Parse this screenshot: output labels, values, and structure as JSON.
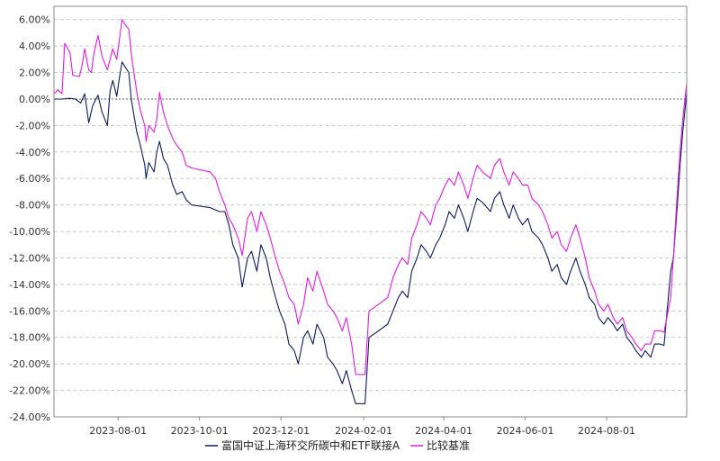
{
  "chart_data": {
    "type": "line",
    "title": "",
    "xlabel": "",
    "ylabel": "",
    "x_range": [
      "2023-06-14",
      "2024-09-30"
    ],
    "ylim": [
      -24,
      7
    ],
    "y_ticks": [
      6,
      4,
      2,
      0,
      -2,
      -4,
      -6,
      -8,
      -10,
      -12,
      -14,
      -16,
      -18,
      -20,
      -22,
      -24
    ],
    "y_tick_labels": [
      "6.00%",
      "4.00%",
      "2.00%",
      "0.00%",
      "-2.00%",
      "-4.00%",
      "-6.00%",
      "-8.00%",
      "-10.00%",
      "-12.00%",
      "-14.00%",
      "-16.00%",
      "-18.00%",
      "-20.00%",
      "-22.00%",
      "-24.00%"
    ],
    "x_ticks": [
      "2023-08-01",
      "2023-10-01",
      "2023-12-01",
      "2024-02-01",
      "2024-04-01",
      "2024-06-01",
      "2024-08-01"
    ],
    "grid": true,
    "legend_position": "bottom",
    "series": [
      {
        "name": "富国中证上海环交所碳中和ETF联接A",
        "color": "#0d1a5c",
        "points": [
          [
            "2023-06-14",
            0.0
          ],
          [
            "2023-06-20",
            0.0
          ],
          [
            "2023-06-26",
            0.05
          ],
          [
            "2023-06-30",
            0.0
          ],
          [
            "2023-07-04",
            -0.3
          ],
          [
            "2023-07-07",
            0.4
          ],
          [
            "2023-07-10",
            -1.8
          ],
          [
            "2023-07-13",
            -0.5
          ],
          [
            "2023-07-17",
            0.3
          ],
          [
            "2023-07-20",
            -1.0
          ],
          [
            "2023-07-24",
            -2.0
          ],
          [
            "2023-07-26",
            0.6
          ],
          [
            "2023-07-28",
            1.4
          ],
          [
            "2023-07-31",
            0.2
          ],
          [
            "2023-08-02",
            1.6
          ],
          [
            "2023-08-04",
            2.8
          ],
          [
            "2023-08-07",
            2.3
          ],
          [
            "2023-08-09",
            2.0
          ],
          [
            "2023-08-11",
            -0.1
          ],
          [
            "2023-08-15",
            -2.5
          ],
          [
            "2023-08-17",
            -3.2
          ],
          [
            "2023-08-21",
            -5.0
          ],
          [
            "2023-08-22",
            -6.0
          ],
          [
            "2023-08-24",
            -4.8
          ],
          [
            "2023-08-28",
            -5.5
          ],
          [
            "2023-08-30",
            -4.0
          ],
          [
            "2023-09-01",
            -3.2
          ],
          [
            "2023-09-04",
            -4.5
          ],
          [
            "2023-09-07",
            -5.0
          ],
          [
            "2023-09-11",
            -6.5
          ],
          [
            "2023-09-14",
            -7.2
          ],
          [
            "2023-09-18",
            -7.0
          ],
          [
            "2023-09-21",
            -7.6
          ],
          [
            "2023-09-25",
            -8.0
          ],
          [
            "2023-10-09",
            -8.2
          ],
          [
            "2023-10-16",
            -8.5
          ],
          [
            "2023-10-20",
            -8.5
          ],
          [
            "2023-10-23",
            -9.5
          ],
          [
            "2023-10-26",
            -11.0
          ],
          [
            "2023-10-30",
            -12.0
          ],
          [
            "2023-11-02",
            -14.2
          ],
          [
            "2023-11-06",
            -12.0
          ],
          [
            "2023-11-09",
            -11.5
          ],
          [
            "2023-11-13",
            -13.0
          ],
          [
            "2023-11-16",
            -11.0
          ],
          [
            "2023-11-20",
            -12.0
          ],
          [
            "2023-11-23",
            -13.5
          ],
          [
            "2023-11-27",
            -15.0
          ],
          [
            "2023-11-30",
            -16.0
          ],
          [
            "2023-12-04",
            -17.0
          ],
          [
            "2023-12-07",
            -18.5
          ],
          [
            "2023-12-11",
            -19.0
          ],
          [
            "2023-12-14",
            -20.0
          ],
          [
            "2023-12-18",
            -18.0
          ],
          [
            "2023-12-21",
            -17.5
          ],
          [
            "2023-12-25",
            -18.5
          ],
          [
            "2023-12-28",
            -17.0
          ],
          [
            "2024-01-02",
            -18.0
          ],
          [
            "2024-01-05",
            -19.5
          ],
          [
            "2024-01-09",
            -20.0
          ],
          [
            "2024-01-12",
            -20.5
          ],
          [
            "2024-01-16",
            -21.5
          ],
          [
            "2024-01-19",
            -20.5
          ],
          [
            "2024-01-23",
            -22.0
          ],
          [
            "2024-01-26",
            -23.0
          ],
          [
            "2024-02-02",
            -23.0
          ],
          [
            "2024-02-05",
            -18.0
          ],
          [
            "2024-02-08",
            -17.8
          ],
          [
            "2024-02-19",
            -17.0
          ],
          [
            "2024-02-23",
            -16.0
          ],
          [
            "2024-02-27",
            -15.0
          ],
          [
            "2024-03-01",
            -14.5
          ],
          [
            "2024-03-05",
            -15.0
          ],
          [
            "2024-03-08",
            -13.0
          ],
          [
            "2024-03-12",
            -12.0
          ],
          [
            "2024-03-15",
            -11.0
          ],
          [
            "2024-03-19",
            -11.5
          ],
          [
            "2024-03-22",
            -12.0
          ],
          [
            "2024-03-26",
            -11.0
          ],
          [
            "2024-03-29",
            -10.5
          ],
          [
            "2024-04-02",
            -9.5
          ],
          [
            "2024-04-05",
            -8.5
          ],
          [
            "2024-04-09",
            -9.0
          ],
          [
            "2024-04-12",
            -8.0
          ],
          [
            "2024-04-16",
            -9.0
          ],
          [
            "2024-04-19",
            -10.0
          ],
          [
            "2024-04-23",
            -8.5
          ],
          [
            "2024-04-26",
            -7.5
          ],
          [
            "2024-04-30",
            -7.8
          ],
          [
            "2024-05-06",
            -8.5
          ],
          [
            "2024-05-09",
            -7.5
          ],
          [
            "2024-05-13",
            -7.0
          ],
          [
            "2024-05-16",
            -8.0
          ],
          [
            "2024-05-20",
            -9.0
          ],
          [
            "2024-05-23",
            -8.0
          ],
          [
            "2024-05-27",
            -9.0
          ],
          [
            "2024-05-30",
            -9.5
          ],
          [
            "2024-06-03",
            -9.0
          ],
          [
            "2024-06-06",
            -10.0
          ],
          [
            "2024-06-11",
            -10.5
          ],
          [
            "2024-06-14",
            -11.0
          ],
          [
            "2024-06-18",
            -12.0
          ],
          [
            "2024-06-21",
            -13.0
          ],
          [
            "2024-06-25",
            -12.5
          ],
          [
            "2024-06-28",
            -13.5
          ],
          [
            "2024-07-02",
            -14.0
          ],
          [
            "2024-07-05",
            -13.0
          ],
          [
            "2024-07-09",
            -12.0
          ],
          [
            "2024-07-12",
            -13.0
          ],
          [
            "2024-07-16",
            -14.0
          ],
          [
            "2024-07-19",
            -15.0
          ],
          [
            "2024-07-23",
            -15.5
          ],
          [
            "2024-07-26",
            -16.5
          ],
          [
            "2024-07-30",
            -17.0
          ],
          [
            "2024-08-02",
            -16.5
          ],
          [
            "2024-08-06",
            -17.0
          ],
          [
            "2024-08-09",
            -17.5
          ],
          [
            "2024-08-13",
            -17.0
          ],
          [
            "2024-08-16",
            -18.0
          ],
          [
            "2024-08-20",
            -18.5
          ],
          [
            "2024-08-23",
            -19.0
          ],
          [
            "2024-08-27",
            -19.5
          ],
          [
            "2024-08-30",
            -19.0
          ],
          [
            "2024-09-03",
            -19.5
          ],
          [
            "2024-09-06",
            -18.5
          ],
          [
            "2024-09-10",
            -18.5
          ],
          [
            "2024-09-13",
            -18.6
          ],
          [
            "2024-09-18",
            -13.0
          ],
          [
            "2024-09-20",
            -12.0
          ],
          [
            "2024-09-23",
            -8.0
          ],
          [
            "2024-09-25",
            -5.0
          ],
          [
            "2024-09-27",
            -2.5
          ],
          [
            "2024-09-30",
            0.5
          ]
        ]
      },
      {
        "name": "比较基准",
        "color": "#e619e6",
        "points": [
          [
            "2023-06-14",
            0.4
          ],
          [
            "2023-06-17",
            0.7
          ],
          [
            "2023-06-20",
            0.4
          ],
          [
            "2023-06-22",
            4.2
          ],
          [
            "2023-06-26",
            3.5
          ],
          [
            "2023-06-28",
            1.8
          ],
          [
            "2023-07-03",
            1.7
          ],
          [
            "2023-07-05",
            2.5
          ],
          [
            "2023-07-07",
            3.8
          ],
          [
            "2023-07-10",
            2.2
          ],
          [
            "2023-07-12",
            2.0
          ],
          [
            "2023-07-14",
            3.5
          ],
          [
            "2023-07-17",
            4.8
          ],
          [
            "2023-07-20",
            3.2
          ],
          [
            "2023-07-24",
            2.2
          ],
          [
            "2023-07-26",
            3.0
          ],
          [
            "2023-07-28",
            3.8
          ],
          [
            "2023-07-31",
            3.0
          ],
          [
            "2023-08-02",
            4.5
          ],
          [
            "2023-08-04",
            6.0
          ],
          [
            "2023-08-07",
            5.5
          ],
          [
            "2023-08-09",
            5.3
          ],
          [
            "2023-08-11",
            3.3
          ],
          [
            "2023-08-15",
            0.5
          ],
          [
            "2023-08-18",
            -1.0
          ],
          [
            "2023-08-21",
            -2.0
          ],
          [
            "2023-08-22",
            -3.2
          ],
          [
            "2023-08-24",
            -2.0
          ],
          [
            "2023-08-28",
            -2.5
          ],
          [
            "2023-08-30",
            -1.5
          ],
          [
            "2023-09-01",
            0.5
          ],
          [
            "2023-09-04",
            -1.0
          ],
          [
            "2023-09-07",
            -2.0
          ],
          [
            "2023-09-11",
            -3.0
          ],
          [
            "2023-09-14",
            -3.5
          ],
          [
            "2023-09-18",
            -4.0
          ],
          [
            "2023-09-21",
            -5.0
          ],
          [
            "2023-09-25",
            -5.2
          ],
          [
            "2023-10-09",
            -5.5
          ],
          [
            "2023-10-13",
            -6.0
          ],
          [
            "2023-10-16",
            -7.0
          ],
          [
            "2023-10-20",
            -8.0
          ],
          [
            "2023-10-23",
            -9.0
          ],
          [
            "2023-10-26",
            -9.5
          ],
          [
            "2023-10-30",
            -10.5
          ],
          [
            "2023-11-02",
            -11.8
          ],
          [
            "2023-11-06",
            -9.0
          ],
          [
            "2023-11-09",
            -8.5
          ],
          [
            "2023-11-13",
            -10.0
          ],
          [
            "2023-11-16",
            -8.5
          ],
          [
            "2023-11-20",
            -9.5
          ],
          [
            "2023-11-23",
            -10.5
          ],
          [
            "2023-11-27",
            -12.0
          ],
          [
            "2023-11-30",
            -13.0
          ],
          [
            "2023-12-04",
            -14.0
          ],
          [
            "2023-12-07",
            -15.0
          ],
          [
            "2023-12-11",
            -15.5
          ],
          [
            "2023-12-14",
            -17.0
          ],
          [
            "2023-12-18",
            -15.5
          ],
          [
            "2023-12-21",
            -13.5
          ],
          [
            "2023-12-25",
            -14.5
          ],
          [
            "2023-12-28",
            -13.0
          ],
          [
            "2024-01-02",
            -14.5
          ],
          [
            "2024-01-05",
            -15.5
          ],
          [
            "2024-01-09",
            -16.0
          ],
          [
            "2024-01-12",
            -16.5
          ],
          [
            "2024-01-16",
            -17.5
          ],
          [
            "2024-01-19",
            -16.5
          ],
          [
            "2024-01-23",
            -18.5
          ],
          [
            "2024-01-26",
            -20.8
          ],
          [
            "2024-02-02",
            -20.8
          ],
          [
            "2024-02-05",
            -16.0
          ],
          [
            "2024-02-08",
            -15.8
          ],
          [
            "2024-02-19",
            -15.0
          ],
          [
            "2024-02-23",
            -13.5
          ],
          [
            "2024-02-27",
            -12.5
          ],
          [
            "2024-03-01",
            -12.0
          ],
          [
            "2024-03-05",
            -12.5
          ],
          [
            "2024-03-08",
            -10.5
          ],
          [
            "2024-03-12",
            -9.5
          ],
          [
            "2024-03-15",
            -8.5
          ],
          [
            "2024-03-19",
            -9.0
          ],
          [
            "2024-03-22",
            -9.5
          ],
          [
            "2024-03-26",
            -8.0
          ],
          [
            "2024-03-29",
            -7.5
          ],
          [
            "2024-04-02",
            -6.5
          ],
          [
            "2024-04-05",
            -6.0
          ],
          [
            "2024-04-09",
            -6.5
          ],
          [
            "2024-04-12",
            -5.5
          ],
          [
            "2024-04-16",
            -6.5
          ],
          [
            "2024-04-19",
            -7.5
          ],
          [
            "2024-04-23",
            -6.0
          ],
          [
            "2024-04-26",
            -5.0
          ],
          [
            "2024-04-30",
            -5.5
          ],
          [
            "2024-05-06",
            -6.0
          ],
          [
            "2024-05-09",
            -5.0
          ],
          [
            "2024-05-13",
            -4.5
          ],
          [
            "2024-05-16",
            -5.5
          ],
          [
            "2024-05-20",
            -6.5
          ],
          [
            "2024-05-23",
            -5.5
          ],
          [
            "2024-05-27",
            -6.0
          ],
          [
            "2024-05-30",
            -6.5
          ],
          [
            "2024-06-03",
            -6.5
          ],
          [
            "2024-06-06",
            -7.5
          ],
          [
            "2024-06-11",
            -8.0
          ],
          [
            "2024-06-14",
            -8.5
          ],
          [
            "2024-06-18",
            -9.5
          ],
          [
            "2024-06-21",
            -10.5
          ],
          [
            "2024-06-25",
            -10.0
          ],
          [
            "2024-06-28",
            -11.0
          ],
          [
            "2024-07-02",
            -11.5
          ],
          [
            "2024-07-05",
            -10.5
          ],
          [
            "2024-07-09",
            -9.5
          ],
          [
            "2024-07-12",
            -10.5
          ],
          [
            "2024-07-16",
            -12.0
          ],
          [
            "2024-07-19",
            -13.5
          ],
          [
            "2024-07-23",
            -14.5
          ],
          [
            "2024-07-26",
            -15.5
          ],
          [
            "2024-07-30",
            -16.0
          ],
          [
            "2024-08-02",
            -15.5
          ],
          [
            "2024-08-06",
            -16.5
          ],
          [
            "2024-08-09",
            -17.0
          ],
          [
            "2024-08-13",
            -16.5
          ],
          [
            "2024-08-16",
            -17.5
          ],
          [
            "2024-08-20",
            -18.0
          ],
          [
            "2024-08-23",
            -18.5
          ],
          [
            "2024-08-27",
            -19.0
          ],
          [
            "2024-08-30",
            -18.5
          ],
          [
            "2024-09-03",
            -18.5
          ],
          [
            "2024-09-06",
            -17.5
          ],
          [
            "2024-09-10",
            -17.5
          ],
          [
            "2024-09-13",
            -17.6
          ],
          [
            "2024-09-18",
            -15.0
          ],
          [
            "2024-09-20",
            -12.0
          ],
          [
            "2024-09-23",
            -7.0
          ],
          [
            "2024-09-25",
            -4.0
          ],
          [
            "2024-09-27",
            -1.5
          ],
          [
            "2024-09-30",
            1.2
          ]
        ]
      }
    ]
  }
}
